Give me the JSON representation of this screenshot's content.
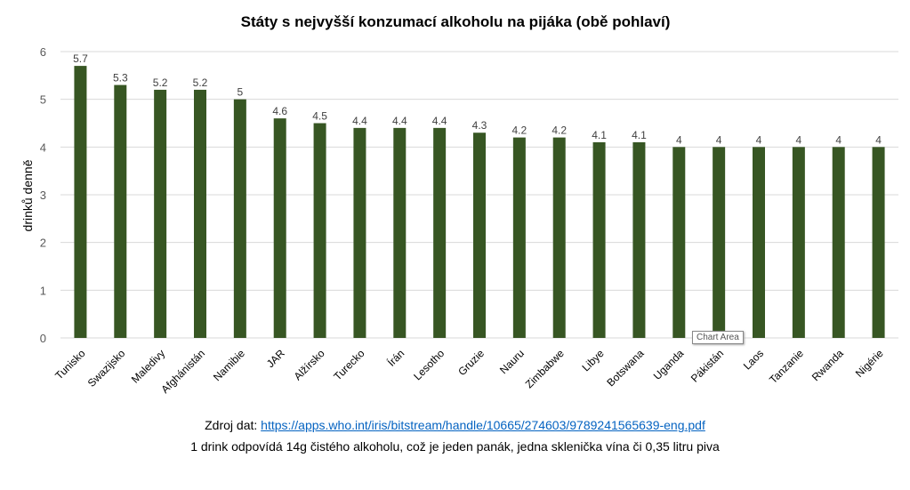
{
  "chart_data": {
    "type": "bar",
    "title": "Státy s nejvyšší konzumací alkoholu na pijáka (obě pohlaví)",
    "xlabel": "",
    "ylabel": "drinků denně",
    "ylim": [
      0,
      6
    ],
    "yticks": [
      0,
      1,
      2,
      3,
      4,
      5,
      6
    ],
    "grid": true,
    "categories": [
      "Tunisko",
      "Swazijsko",
      "Maledivy",
      "Afghánistán",
      "Namibie",
      "JAR",
      "Alžírsko",
      "Turecko",
      "Írán",
      "Lesotho",
      "Gruzie",
      "Nauru",
      "Zimbabwe",
      "Libye",
      "Botswana",
      "Uganda",
      "Pákistán",
      "Laos",
      "Tanzanie",
      "Rwanda",
      "Nigérie"
    ],
    "values": [
      5.7,
      5.3,
      5.2,
      5.2,
      5,
      4.6,
      4.5,
      4.4,
      4.4,
      4.4,
      4.3,
      4.2,
      4.2,
      4.1,
      4.1,
      4,
      4,
      4,
      4,
      4,
      4
    ],
    "color": "#375623"
  },
  "source": {
    "label": "Zdroj dat: ",
    "url": "https://apps.who.int/iris/bitstream/handle/10665/274603/9789241565639-eng.pdf"
  },
  "note": "1 drink odpovídá 14g čistého alkoholu, což je jeden panák, jedna sklenička vína či 0,35 litru piva",
  "tooltip": "Chart Area"
}
